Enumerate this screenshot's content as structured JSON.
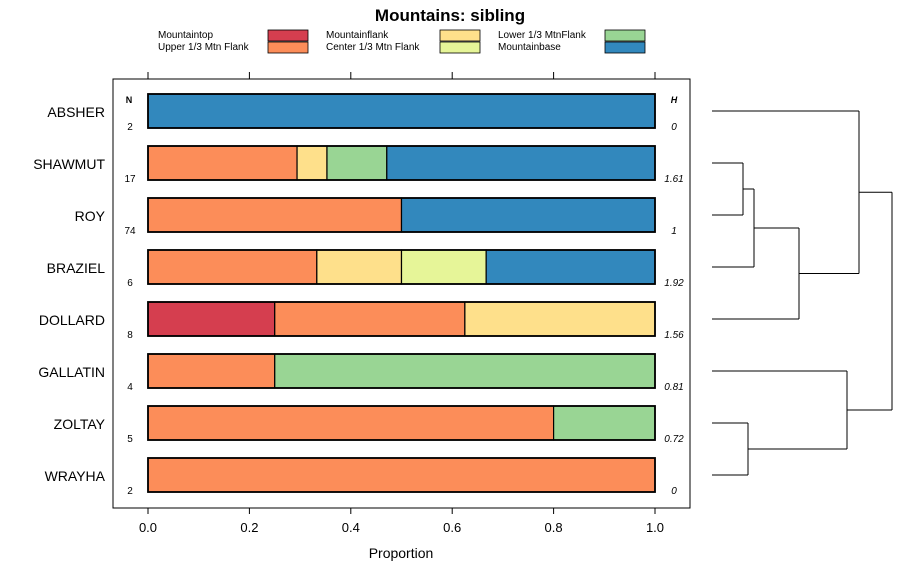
{
  "chart_data": {
    "type": "bar",
    "orientation": "horizontal-stacked",
    "title": "Mountains: sibling",
    "xlabel": "Proportion",
    "xlim": [
      0,
      1
    ],
    "xticks": [
      "0.0",
      "0.2",
      "0.4",
      "0.6",
      "0.8",
      "1.0"
    ],
    "xtick_values": [
      0,
      0.2,
      0.4,
      0.6,
      0.8,
      1.0
    ],
    "n_header": "N",
    "h_header": "H",
    "legend": [
      {
        "name": "Mountaintop",
        "color": "#d53e4f"
      },
      {
        "name": "Upper 1/3 Mtn Flank",
        "color": "#fc8d59"
      },
      {
        "name": "Mountainflank",
        "color": "#fee08b"
      },
      {
        "name": "Center 1/3 Mtn Flank",
        "color": "#e6f598"
      },
      {
        "name": "Lower 1/3 MtnFlank",
        "color": "#99d594"
      },
      {
        "name": "Mountainbase",
        "color": "#3288bd"
      }
    ],
    "categories": [
      "ABSHER",
      "SHAWMUT",
      "ROY",
      "BRAZIEL",
      "DOLLARD",
      "GALLATIN",
      "ZOLTAY",
      "WRAYHA"
    ],
    "n": [
      "2",
      "17",
      "74",
      "6",
      "8",
      "4",
      "5",
      "2"
    ],
    "h": [
      "0",
      "1.61",
      "1",
      "1.92",
      "1.56",
      "0.81",
      "0.72",
      "0"
    ],
    "series": [
      {
        "name": "Mountaintop",
        "values": [
          0,
          0,
          0,
          0,
          0.25,
          0,
          0,
          0
        ]
      },
      {
        "name": "Upper 1/3 Mtn Flank",
        "values": [
          0,
          0.294,
          0.5,
          0.333,
          0.375,
          0.25,
          0.8,
          1.0
        ]
      },
      {
        "name": "Mountainflank",
        "values": [
          0,
          0.059,
          0,
          0.167,
          0.375,
          0,
          0,
          0
        ]
      },
      {
        "name": "Center 1/3 Mtn Flank",
        "values": [
          0,
          0,
          0,
          0.167,
          0,
          0,
          0,
          0
        ]
      },
      {
        "name": "Lower 1/3 MtnFlank",
        "values": [
          0,
          0.118,
          0,
          0,
          0,
          0.75,
          0.2,
          0
        ]
      },
      {
        "name": "Mountainbase",
        "values": [
          1.0,
          0.529,
          0.5,
          0.333,
          0,
          0,
          0,
          0
        ]
      }
    ],
    "dendrogram": {
      "description": "hierarchical clustering of rows",
      "merges": [
        {
          "left": "SHAWMUT",
          "right": "ROY",
          "height": 0.1
        },
        {
          "left": "merge-0",
          "right": "BRAZIEL",
          "height": 0.15
        },
        {
          "left": "merge-1",
          "right": "DOLLARD",
          "height": 0.3
        },
        {
          "left": "merge-2",
          "right": "ABSHER",
          "height": 0.6
        },
        {
          "left": "ZOLTAY",
          "right": "WRAYHA",
          "height": 0.13
        },
        {
          "left": "GALLATIN",
          "right": "merge-4",
          "height": 0.5
        },
        {
          "left": "merge-3",
          "right": "merge-5",
          "height": 0.65
        }
      ]
    }
  }
}
